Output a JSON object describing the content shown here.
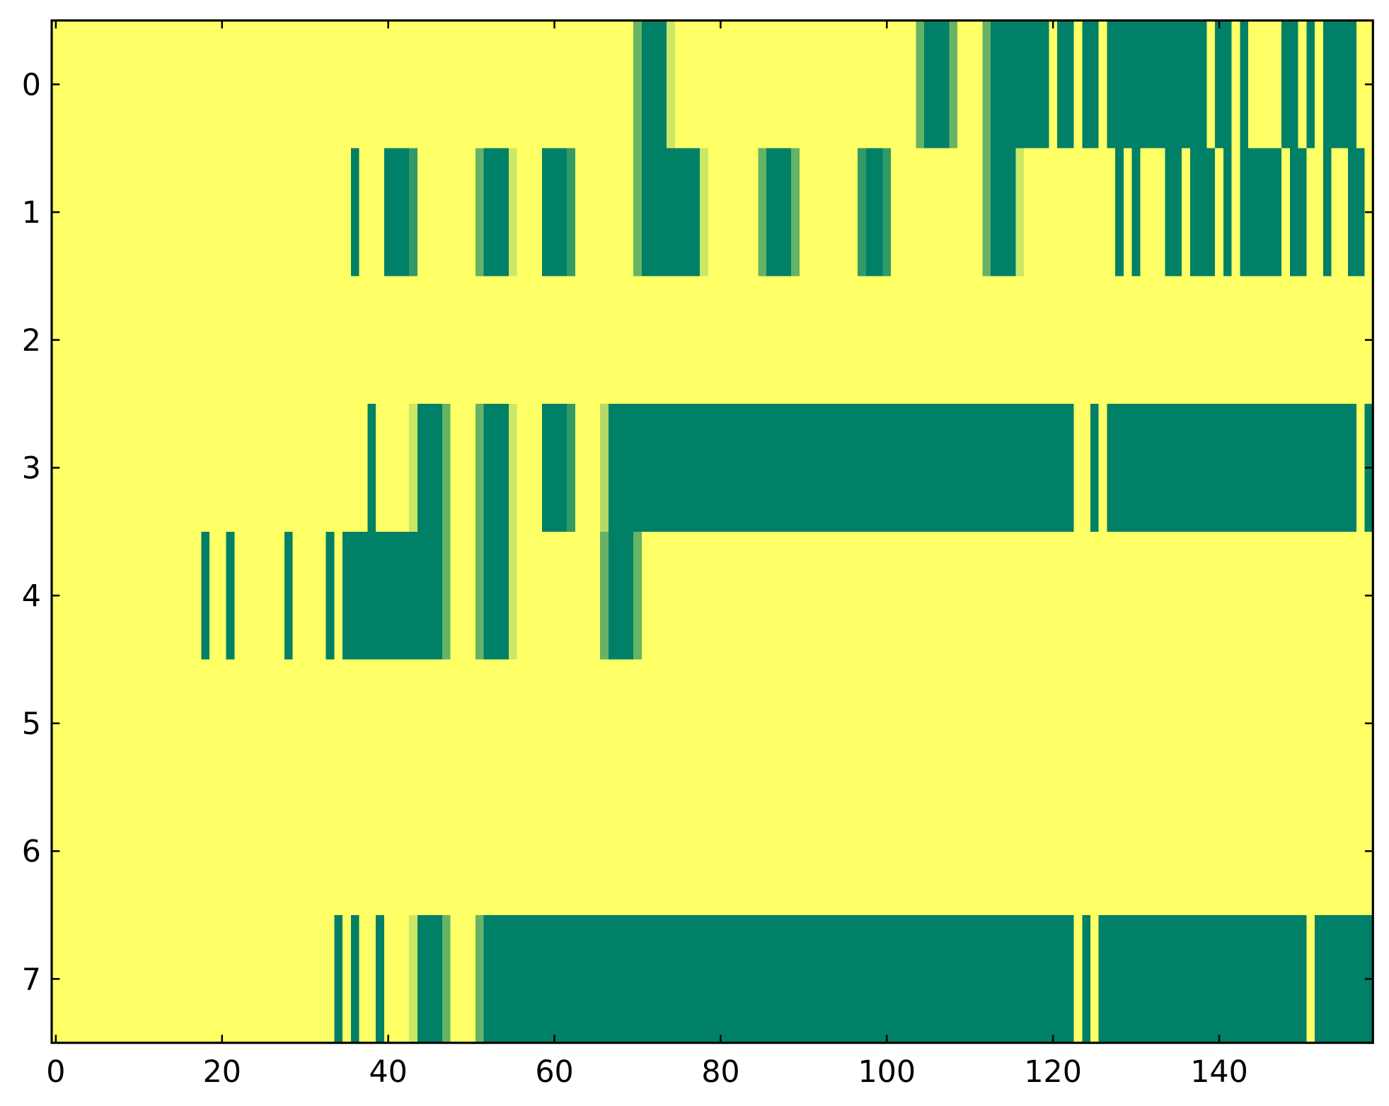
{
  "chart_data": {
    "type": "heatmap",
    "colormap": [
      "#008066",
      "#ffff66"
    ],
    "vmin": 0,
    "vmax": 1,
    "xlim": [
      -0.5,
      158.5
    ],
    "ylim": [
      7.5,
      -0.5
    ],
    "xticks": [
      0,
      20,
      40,
      60,
      80,
      100,
      120,
      140
    ],
    "yticks": [
      0,
      1,
      2,
      3,
      4,
      5,
      6,
      7
    ],
    "z": [
      [
        1,
        1,
        1,
        1,
        1,
        1,
        1,
        1,
        1,
        1,
        1,
        1,
        1,
        1,
        1,
        1,
        1,
        1,
        1,
        1,
        1,
        1,
        1,
        1,
        1,
        1,
        1,
        1,
        1,
        1,
        1,
        1,
        1,
        1,
        1,
        1,
        1,
        1,
        1,
        1,
        1,
        1,
        1,
        1,
        1,
        1,
        1,
        1,
        1,
        1,
        1,
        1,
        1,
        1,
        1,
        1,
        1,
        1,
        1,
        1,
        1,
        1,
        1,
        1,
        1,
        1,
        1,
        1,
        1,
        1,
        0.4,
        0,
        0,
        0,
        0.8,
        1,
        1,
        1,
        1,
        1,
        1,
        1,
        1,
        1,
        1,
        1,
        1,
        1,
        1,
        1,
        1,
        1,
        1,
        1,
        1,
        1,
        1,
        1,
        1,
        1,
        1,
        1,
        1,
        1,
        0.4,
        0,
        0,
        0,
        0.4,
        1,
        1,
        1,
        0.4,
        0,
        0,
        0,
        0,
        0,
        0,
        0,
        1,
        0,
        0,
        1,
        0,
        0,
        1,
        0,
        0,
        0,
        0,
        0,
        0,
        0,
        0,
        0,
        0,
        0,
        0,
        1,
        0,
        0,
        1,
        0,
        1,
        1,
        1,
        1,
        0,
        0,
        1,
        0,
        1,
        0,
        0,
        0,
        0,
        1,
        1
      ],
      [
        1,
        1,
        1,
        1,
        1,
        1,
        1,
        1,
        1,
        1,
        1,
        1,
        1,
        1,
        1,
        1,
        1,
        1,
        1,
        1,
        1,
        1,
        1,
        1,
        1,
        1,
        1,
        1,
        1,
        1,
        1,
        1,
        1,
        1,
        1,
        1,
        0,
        1,
        1,
        1,
        0,
        0,
        0,
        0.2,
        1,
        1,
        1,
        1,
        1,
        1,
        1,
        0.4,
        0,
        0,
        0,
        0.8,
        1,
        1,
        1,
        0,
        0,
        0,
        0.2,
        1,
        1,
        1,
        1,
        1,
        1,
        1,
        0.4,
        0,
        0,
        0,
        0,
        0,
        0,
        0,
        0.8,
        1,
        1,
        1,
        1,
        1,
        1,
        0.4,
        0,
        0,
        0,
        0.4,
        1,
        1,
        1,
        1,
        1,
        1,
        1,
        0.2,
        0,
        0,
        0.2,
        1,
        1,
        1,
        1,
        1,
        1,
        1,
        1,
        1,
        1,
        1,
        0.4,
        0,
        0,
        0,
        0.8,
        1,
        1,
        1,
        1,
        1,
        1,
        1,
        1,
        1,
        1,
        1,
        0,
        1,
        0,
        1,
        1,
        1,
        0,
        0,
        1,
        0,
        0,
        0,
        1,
        0,
        1,
        0,
        0,
        0,
        0,
        0,
        1,
        0,
        0,
        1,
        1,
        0,
        1,
        1,
        0,
        0,
        1
      ],
      [
        1,
        1,
        1,
        1,
        1,
        1,
        1,
        1,
        1,
        1,
        1,
        1,
        1,
        1,
        1,
        1,
        1,
        1,
        1,
        1,
        1,
        1,
        1,
        1,
        1,
        1,
        1,
        1,
        1,
        1,
        1,
        1,
        1,
        1,
        1,
        1,
        1,
        1,
        1,
        1,
        1,
        1,
        1,
        1,
        1,
        1,
        1,
        1,
        1,
        1,
        1,
        1,
        1,
        1,
        1,
        1,
        1,
        1,
        1,
        1,
        1,
        1,
        1,
        1,
        1,
        1,
        1,
        1,
        1,
        1,
        1,
        1,
        1,
        1,
        1,
        1,
        1,
        1,
        1,
        1,
        1,
        1,
        1,
        1,
        1,
        1,
        1,
        1,
        1,
        1,
        1,
        1,
        1,
        1,
        1,
        1,
        1,
        1,
        1,
        1,
        1,
        1,
        1,
        1,
        1,
        1,
        1,
        1,
        1,
        1,
        1,
        1,
        1,
        1,
        1,
        1,
        1,
        1,
        1,
        1,
        1,
        1,
        1,
        1,
        1,
        1,
        1,
        1,
        1,
        1,
        1,
        1,
        1,
        1,
        1,
        1,
        1,
        1,
        1,
        1,
        1,
        1,
        1,
        1,
        1,
        1,
        1,
        1,
        1,
        1,
        1,
        1,
        1,
        1,
        1,
        1,
        1,
        1,
        1
      ],
      [
        1,
        1,
        1,
        1,
        1,
        1,
        1,
        1,
        1,
        1,
        1,
        1,
        1,
        1,
        1,
        1,
        1,
        1,
        1,
        1,
        1,
        1,
        1,
        1,
        1,
        1,
        1,
        1,
        1,
        1,
        1,
        1,
        1,
        1,
        1,
        1,
        1,
        1,
        0,
        1,
        1,
        1,
        1,
        0.8,
        0,
        0,
        0,
        0.4,
        1,
        1,
        1,
        0.4,
        0,
        0,
        0,
        0.8,
        1,
        1,
        1,
        0,
        0,
        0,
        0.2,
        1,
        1,
        1,
        0.7,
        0,
        0,
        0,
        0,
        0,
        0,
        0,
        0,
        0,
        0,
        0,
        0,
        0,
        0,
        0,
        0,
        0,
        0,
        0,
        0,
        0,
        0,
        0,
        0,
        0,
        0,
        0,
        0,
        0,
        0,
        0,
        0,
        0,
        0,
        0,
        0,
        0,
        0,
        0,
        0,
        0,
        0,
        0,
        0,
        0,
        0,
        0,
        0,
        0,
        0,
        0,
        0,
        0,
        0,
        0,
        0,
        1,
        1,
        0,
        1,
        0,
        0,
        0,
        0,
        0,
        0,
        0,
        0,
        0,
        0,
        0,
        0,
        0,
        0,
        0,
        0,
        0,
        0,
        0,
        0,
        0,
        0,
        0,
        0,
        0,
        0,
        0,
        0,
        0,
        0,
        1,
        0
      ],
      [
        1,
        1,
        1,
        1,
        1,
        1,
        1,
        1,
        1,
        1,
        1,
        1,
        1,
        1,
        1,
        1,
        1,
        1,
        0,
        1,
        1,
        0,
        1,
        1,
        1,
        1,
        1,
        1,
        0,
        1,
        1,
        1,
        1,
        0,
        1,
        0,
        0,
        0,
        0,
        0,
        0,
        0,
        0,
        0,
        0,
        0,
        0,
        0.4,
        1,
        1,
        1,
        0.4,
        0,
        0,
        0,
        0.8,
        1,
        1,
        1,
        1,
        1,
        1,
        1,
        1,
        1,
        1,
        0.4,
        0,
        0,
        0,
        0.4,
        1,
        1,
        1,
        1,
        1,
        1,
        1,
        1,
        1,
        1,
        1,
        1,
        1,
        1,
        1,
        1,
        1,
        1,
        1,
        1,
        1,
        1,
        1,
        1,
        1,
        1,
        1,
        1,
        1,
        1,
        1,
        1,
        1,
        1,
        1,
        1,
        1,
        1,
        1,
        1,
        1,
        1,
        1,
        1,
        1,
        1,
        1,
        1,
        1,
        1,
        1,
        1,
        1,
        1,
        1,
        1,
        1,
        1,
        1,
        1,
        1,
        1,
        1,
        1,
        1,
        1,
        1,
        1,
        1,
        1,
        1,
        1,
        1,
        1,
        1,
        1,
        1,
        1,
        1,
        1,
        1,
        1,
        1,
        1,
        1,
        1,
        1,
        1
      ],
      [
        1,
        1,
        1,
        1,
        1,
        1,
        1,
        1,
        1,
        1,
        1,
        1,
        1,
        1,
        1,
        1,
        1,
        1,
        1,
        1,
        1,
        1,
        1,
        1,
        1,
        1,
        1,
        1,
        1,
        1,
        1,
        1,
        1,
        1,
        1,
        1,
        1,
        1,
        1,
        1,
        1,
        1,
        1,
        1,
        1,
        1,
        1,
        1,
        1,
        1,
        1,
        1,
        1,
        1,
        1,
        1,
        1,
        1,
        1,
        1,
        1,
        1,
        1,
        1,
        1,
        1,
        1,
        1,
        1,
        1,
        1,
        1,
        1,
        1,
        1,
        1,
        1,
        1,
        1,
        1,
        1,
        1,
        1,
        1,
        1,
        1,
        1,
        1,
        1,
        1,
        1,
        1,
        1,
        1,
        1,
        1,
        1,
        1,
        1,
        1,
        1,
        1,
        1,
        1,
        1,
        1,
        1,
        1,
        1,
        1,
        1,
        1,
        1,
        1,
        1,
        1,
        1,
        1,
        1,
        1,
        1,
        1,
        1,
        1,
        1,
        1,
        1,
        1,
        1,
        1,
        1,
        1,
        1,
        1,
        1,
        1,
        1,
        1,
        1,
        1,
        1,
        1,
        1,
        1,
        1,
        1,
        1,
        1,
        1,
        1,
        1,
        1,
        1,
        1,
        1,
        1,
        1,
        1,
        1
      ],
      [
        1,
        1,
        1,
        1,
        1,
        1,
        1,
        1,
        1,
        1,
        1,
        1,
        1,
        1,
        1,
        1,
        1,
        1,
        1,
        1,
        1,
        1,
        1,
        1,
        1,
        1,
        1,
        1,
        1,
        1,
        1,
        1,
        1,
        1,
        1,
        1,
        1,
        1,
        1,
        1,
        1,
        1,
        1,
        1,
        1,
        1,
        1,
        1,
        1,
        1,
        1,
        1,
        1,
        1,
        1,
        1,
        1,
        1,
        1,
        1,
        1,
        1,
        1,
        1,
        1,
        1,
        1,
        1,
        1,
        1,
        1,
        1,
        1,
        1,
        1,
        1,
        1,
        1,
        1,
        1,
        1,
        1,
        1,
        1,
        1,
        1,
        1,
        1,
        1,
        1,
        1,
        1,
        1,
        1,
        1,
        1,
        1,
        1,
        1,
        1,
        1,
        1,
        1,
        1,
        1,
        1,
        1,
        1,
        1,
        1,
        1,
        1,
        1,
        1,
        1,
        1,
        1,
        1,
        1,
        1,
        1,
        1,
        1,
        1,
        1,
        1,
        1,
        1,
        1,
        1,
        1,
        1,
        1,
        1,
        1,
        1,
        1,
        1,
        1,
        1,
        1,
        1,
        1,
        1,
        1,
        1,
        1,
        1,
        1,
        1,
        1,
        1,
        1,
        1,
        1,
        1,
        1,
        1,
        1
      ],
      [
        1,
        1,
        1,
        1,
        1,
        1,
        1,
        1,
        1,
        1,
        1,
        1,
        1,
        1,
        1,
        1,
        1,
        1,
        1,
        1,
        1,
        1,
        1,
        1,
        1,
        1,
        1,
        1,
        1,
        1,
        1,
        1,
        1,
        1,
        0,
        1,
        0,
        1,
        1,
        0,
        1,
        1,
        1,
        0.8,
        0,
        0,
        0,
        0.4,
        1,
        1,
        1,
        0.4,
        0,
        0,
        0,
        0,
        0,
        0,
        0,
        0,
        0,
        0,
        0,
        0,
        0,
        0,
        0,
        0,
        0,
        0,
        0,
        0,
        0,
        0,
        0,
        0,
        0,
        0,
        0,
        0,
        0,
        0,
        0,
        0,
        0,
        0,
        0,
        0,
        0,
        0,
        0,
        0,
        0,
        0,
        0,
        0,
        0,
        0,
        0,
        0,
        0,
        0,
        0,
        0,
        0,
        0,
        0,
        0,
        0,
        0,
        0,
        0,
        0,
        0,
        0,
        0,
        0,
        0,
        0,
        0,
        0,
        0,
        0,
        1,
        0,
        1,
        0,
        0,
        0,
        0,
        0,
        0,
        0,
        0,
        0,
        0,
        0,
        0,
        0,
        0,
        0,
        0,
        0,
        0,
        0,
        0,
        0,
        0,
        0,
        0,
        0,
        1,
        0,
        0,
        0,
        0,
        0,
        0,
        0
      ]
    ]
  }
}
